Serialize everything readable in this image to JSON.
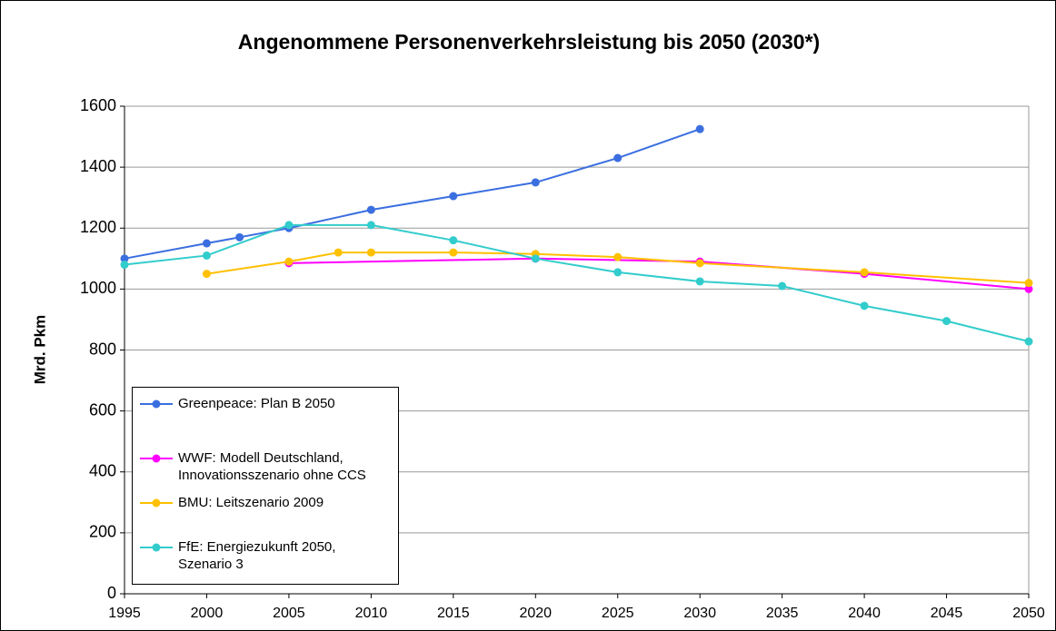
{
  "chart_data": {
    "type": "line",
    "title": "Angenommene Personenverkehrsleistung bis 2050 (2030*)",
    "y_label": "Mrd. Pkm",
    "xlim": [
      1995,
      2050
    ],
    "xticks": [
      1995,
      2000,
      2005,
      2010,
      2015,
      2020,
      2025,
      2030,
      2035,
      2040,
      2045,
      2050
    ],
    "ylim": [
      0,
      1600
    ],
    "yticks": [
      0,
      200,
      400,
      600,
      800,
      1000,
      1200,
      1400,
      1600
    ],
    "grid": true,
    "legend": "lower left",
    "series": [
      {
        "name": "Greenpeace: Plan B 2050",
        "color": "#3b6fe0",
        "x": [
          1995,
          2000,
          2002,
          2005,
          2010,
          2015,
          2020,
          2025,
          2030
        ],
        "values": [
          1100,
          1150,
          1170,
          1200,
          1260,
          1305,
          1350,
          1430,
          1525
        ]
      },
      {
        "name": "WWF: Modell Deutschland, Innovationsszenario ohne CCS",
        "color": "#ff00ff",
        "x": [
          2005,
          2020,
          2030,
          2040,
          2050
        ],
        "values": [
          1085,
          1100,
          1090,
          1050,
          1000
        ]
      },
      {
        "name": "BMU: Leitszenario 2009",
        "color": "#ffc000",
        "x": [
          2000,
          2005,
          2008,
          2010,
          2015,
          2020,
          2025,
          2030,
          2040,
          2050
        ],
        "values": [
          1050,
          1090,
          1120,
          1120,
          1120,
          1115,
          1105,
          1085,
          1055,
          1020
        ]
      },
      {
        "name": "FfE: Energiezukunft 2050, Szenario 3",
        "color": "#33cccc",
        "x": [
          1995,
          2000,
          2005,
          2010,
          2015,
          2020,
          2025,
          2030,
          2035,
          2040,
          2045,
          2050
        ],
        "values": [
          1080,
          1110,
          1210,
          1210,
          1160,
          1100,
          1055,
          1025,
          1010,
          945,
          895,
          828
        ]
      }
    ]
  }
}
